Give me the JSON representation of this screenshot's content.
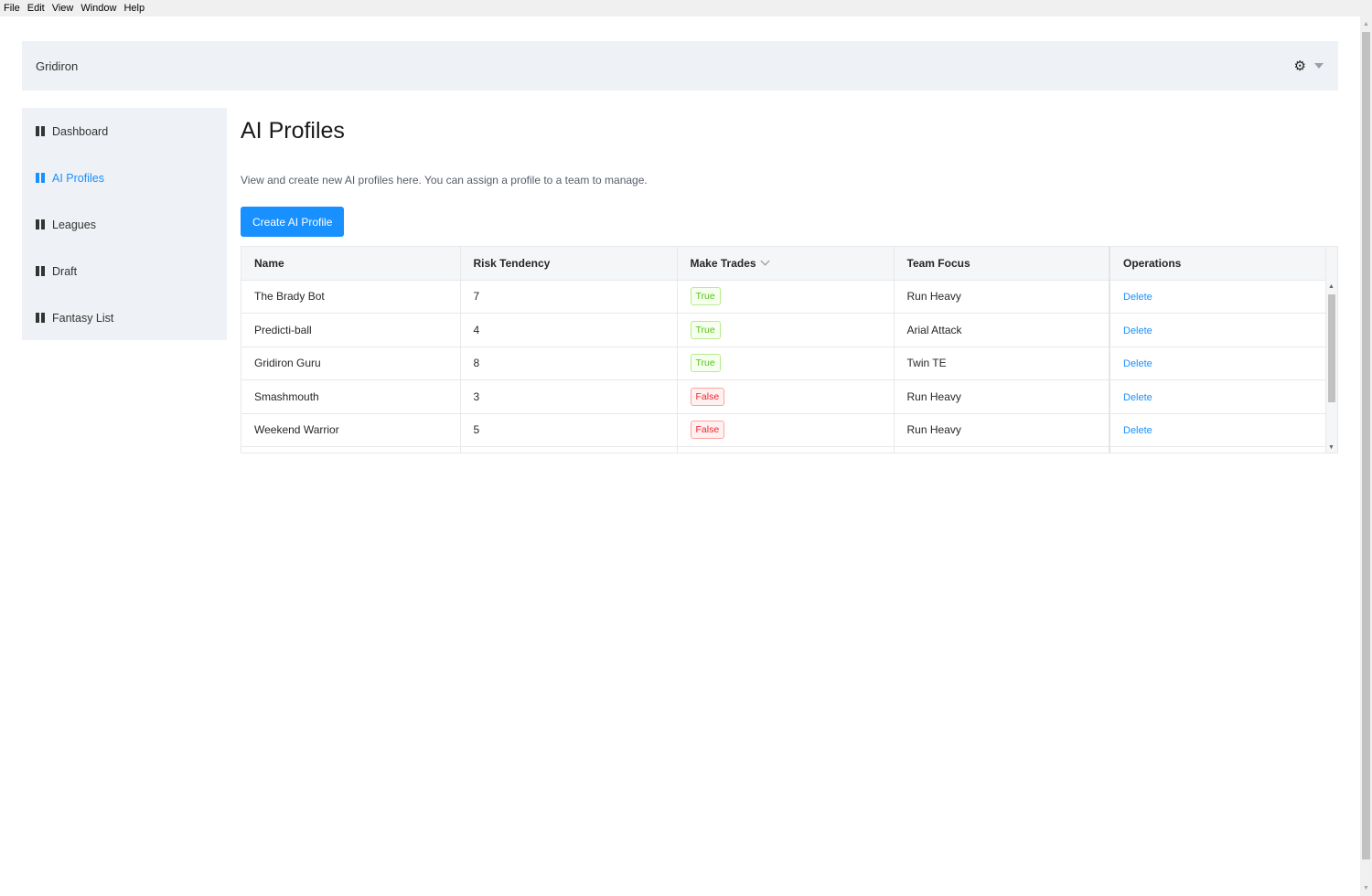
{
  "menu": [
    "File",
    "Edit",
    "View",
    "Window",
    "Help"
  ],
  "header": {
    "brand": "Gridiron"
  },
  "sidebar": {
    "items": [
      {
        "label": "Dashboard",
        "active": false
      },
      {
        "label": "AI Profiles",
        "active": true
      },
      {
        "label": "Leagues",
        "active": false
      },
      {
        "label": "Draft",
        "active": false
      },
      {
        "label": "Fantasy List",
        "active": false
      }
    ]
  },
  "main": {
    "title": "AI Profiles",
    "description": "View and create new AI profiles here. You can assign a profile to a team to manage.",
    "create_button": "Create AI Profile"
  },
  "table": {
    "columns": [
      "Name",
      "Risk Tendency",
      "Make Trades",
      "Team Focus",
      "Operations"
    ],
    "rows": [
      {
        "name": "The Brady Bot",
        "risk": "7",
        "trades": "True",
        "focus": "Run Heavy",
        "op": "Delete"
      },
      {
        "name": "Predicti-ball",
        "risk": "4",
        "trades": "True",
        "focus": "Arial Attack",
        "op": "Delete"
      },
      {
        "name": "Gridiron Guru",
        "risk": "8",
        "trades": "True",
        "focus": "Twin TE",
        "op": "Delete"
      },
      {
        "name": "Smashmouth",
        "risk": "3",
        "trades": "False",
        "focus": "Run Heavy",
        "op": "Delete"
      },
      {
        "name": "Weekend Warrior",
        "risk": "5",
        "trades": "False",
        "focus": "Run Heavy",
        "op": "Delete"
      }
    ]
  },
  "colors": {
    "accent": "#1890ff",
    "true_tag": "#52c41a",
    "false_tag": "#f5222d",
    "panel": "#eef1f5"
  }
}
